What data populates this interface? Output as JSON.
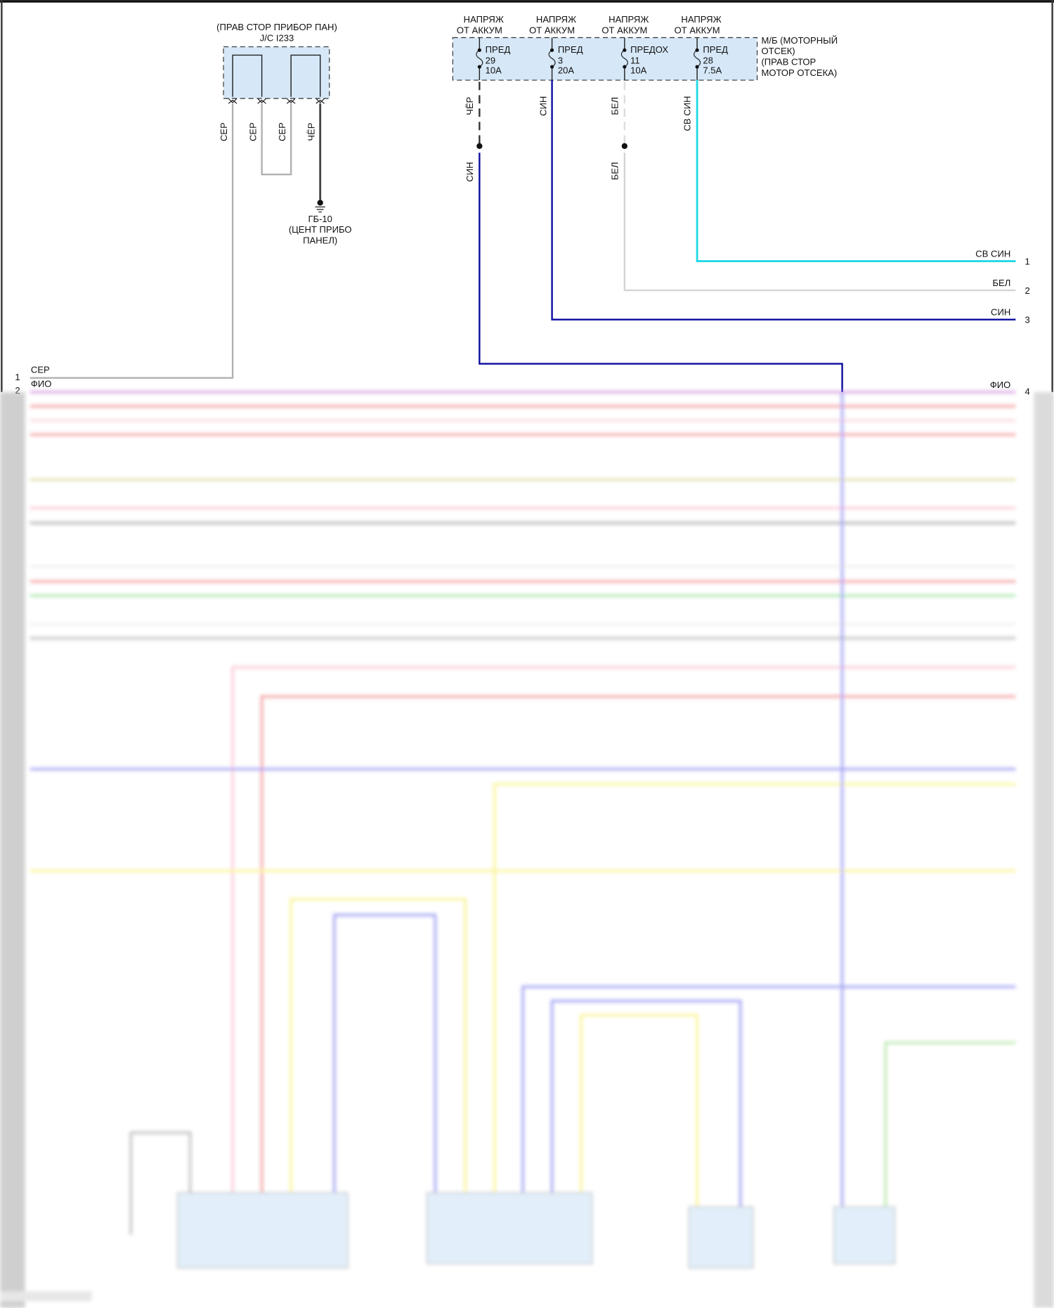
{
  "jc": {
    "title": "(ПРАВ СТОР ПРИБОР ПАН)",
    "name": "J/C I233",
    "pin_wires": [
      "СЕР",
      "СЕР",
      "СЕР",
      "ЧЁР"
    ],
    "ground": {
      "name": "ГБ-10",
      "line1": "(ЦЕНТ ПРИБО",
      "line2": "ПАНЕЛ)"
    }
  },
  "fusebox": {
    "label_lines": [
      "М/Б (МОТОРНЫЙ",
      "ОТСЕК)",
      "(ПРАВ СТОР",
      "МОТОР ОТСЕКА)"
    ],
    "fuses": [
      {
        "supply1": "НАПРЯЖ",
        "supply2": "ОТ АККУМ",
        "name": "ПРЕД",
        "number": "29",
        "rating": "10A",
        "wire_top": "ЧЁР",
        "wire_bottom": "СИН"
      },
      {
        "supply1": "НАПРЯЖ",
        "supply2": "ОТ АККУМ",
        "name": "ПРЕД",
        "number": "3",
        "rating": "20A",
        "wire_top": "СИН"
      },
      {
        "supply1": "НАПРЯЖ",
        "supply2": "ОТ АККУМ",
        "name": "ПРЕДОХ",
        "number": "11",
        "rating": "10A",
        "wire_top": "БЕЛ",
        "wire_bottom": "БЕЛ"
      },
      {
        "supply1": "НАПРЯЖ",
        "supply2": "ОТ АККУМ",
        "name": "ПРЕД",
        "number": "28",
        "rating": "7.5A",
        "wire_top": "СВ СИН"
      }
    ]
  },
  "left_connector": [
    {
      "pin": "1",
      "wire": "СЕР"
    },
    {
      "pin": "2",
      "wire": "ФИО"
    }
  ],
  "right_connector": [
    {
      "pin": "1",
      "wire": "СВ СИН"
    },
    {
      "pin": "2",
      "wire": "БЕЛ"
    },
    {
      "pin": "3",
      "wire": "СИН"
    },
    {
      "pin": "4",
      "wire": "ФИО"
    }
  ],
  "colors": {
    "blue": "#0a0a9e",
    "light_blue": "#22d8e8",
    "white_wire": "#d4d4d4",
    "gray_wire": "#a8a8a8",
    "black_wire": "#333333",
    "box_fill": "#d6e8f8"
  }
}
